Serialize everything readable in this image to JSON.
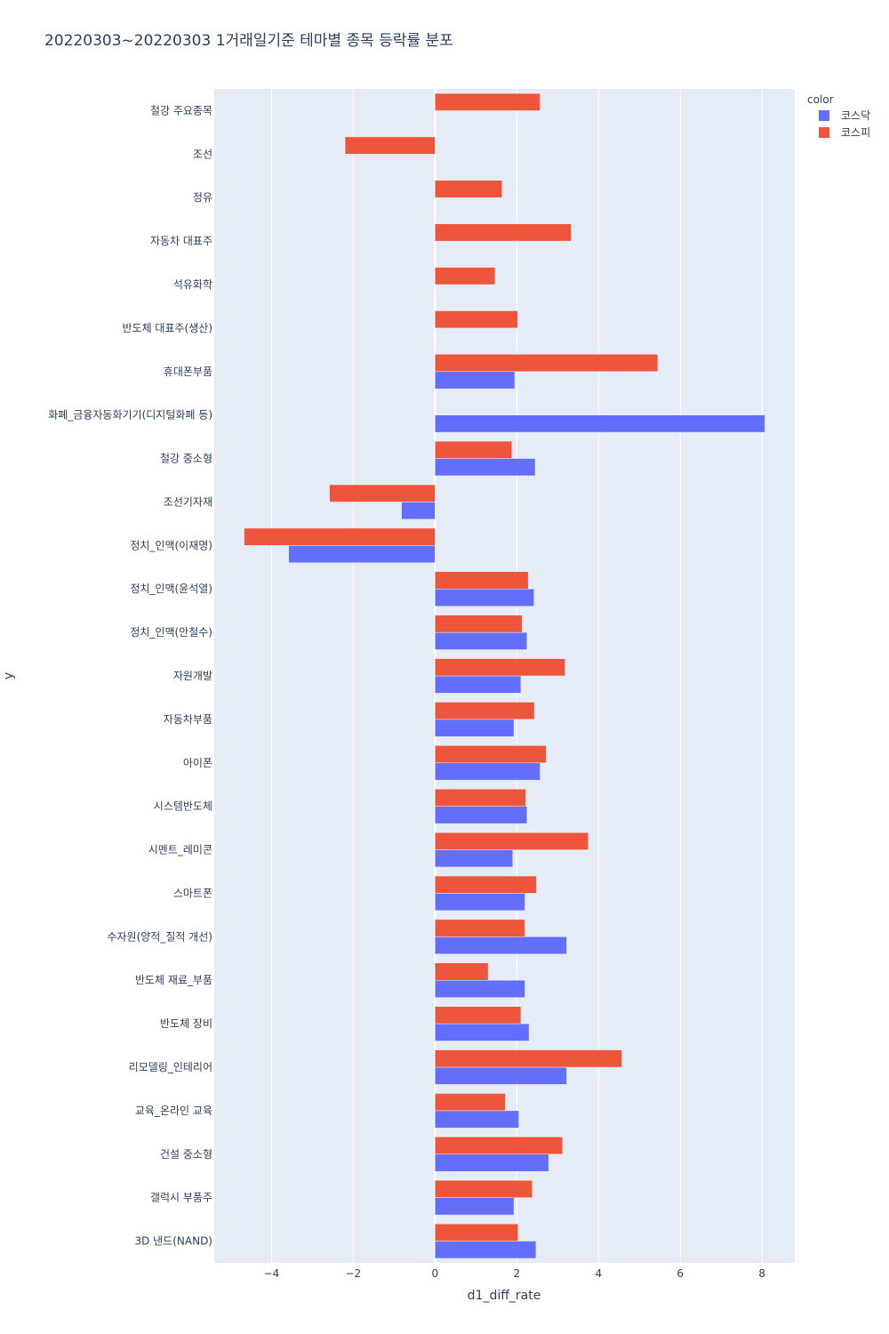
{
  "chart_data": {
    "type": "bar",
    "orientation": "horizontal",
    "barmode": "group",
    "title": "20220303~20220303 1거래일기준 테마별 종목 등락률 분포",
    "xlabel": "d1_diff_rate",
    "ylabel": "y",
    "xlim": [
      -5.4,
      8.8
    ],
    "xticks": [
      -4,
      -2,
      0,
      2,
      4,
      6,
      8
    ],
    "xtick_labels": [
      "−4",
      "−2",
      "0",
      "2",
      "4",
      "6",
      "8"
    ],
    "grid": true,
    "legend": {
      "title": "color",
      "position": "top-right"
    },
    "categories": [
      "철강 주요종목",
      "조선",
      "정유",
      "자동차 대표주",
      "석유화학",
      "반도체 대표주(생산)",
      "휴대폰부품",
      "화폐_금융자동화기기(디지털화폐 등)",
      "철강 중소형",
      "조선기자재",
      "정치_인맥(이재명)",
      "정치_인맥(윤석열)",
      "정치_인맥(안철수)",
      "자원개발",
      "자동차부품",
      "아이폰",
      "시스템반도체",
      "시멘트_레미콘",
      "스마트폰",
      "수자원(양적_질적 개선)",
      "반도체 재료_부품",
      "반도체 장비",
      "리모델링_인테리어",
      "교육_온라인 교육",
      "건설 중소형",
      "갤럭시 부품주",
      "3D 낸드(NAND)"
    ],
    "series": [
      {
        "name": "코스닥",
        "color": "#636efa",
        "values": [
          null,
          null,
          null,
          null,
          null,
          null,
          1.95,
          8.07,
          2.45,
          -0.82,
          -3.58,
          2.42,
          2.25,
          2.1,
          1.93,
          2.57,
          2.25,
          1.9,
          2.2,
          3.22,
          2.2,
          2.3,
          3.22,
          2.05,
          2.78,
          1.93,
          2.47
        ]
      },
      {
        "name": "코스피",
        "color": "#ef553b",
        "values": [
          2.57,
          -2.2,
          1.64,
          3.33,
          1.47,
          2.02,
          5.45,
          null,
          1.88,
          -2.58,
          -4.67,
          2.28,
          2.13,
          3.18,
          2.43,
          2.72,
          2.22,
          3.75,
          2.48,
          2.2,
          1.3,
          2.1,
          4.57,
          1.72,
          3.12,
          2.38,
          2.03
        ]
      }
    ]
  }
}
